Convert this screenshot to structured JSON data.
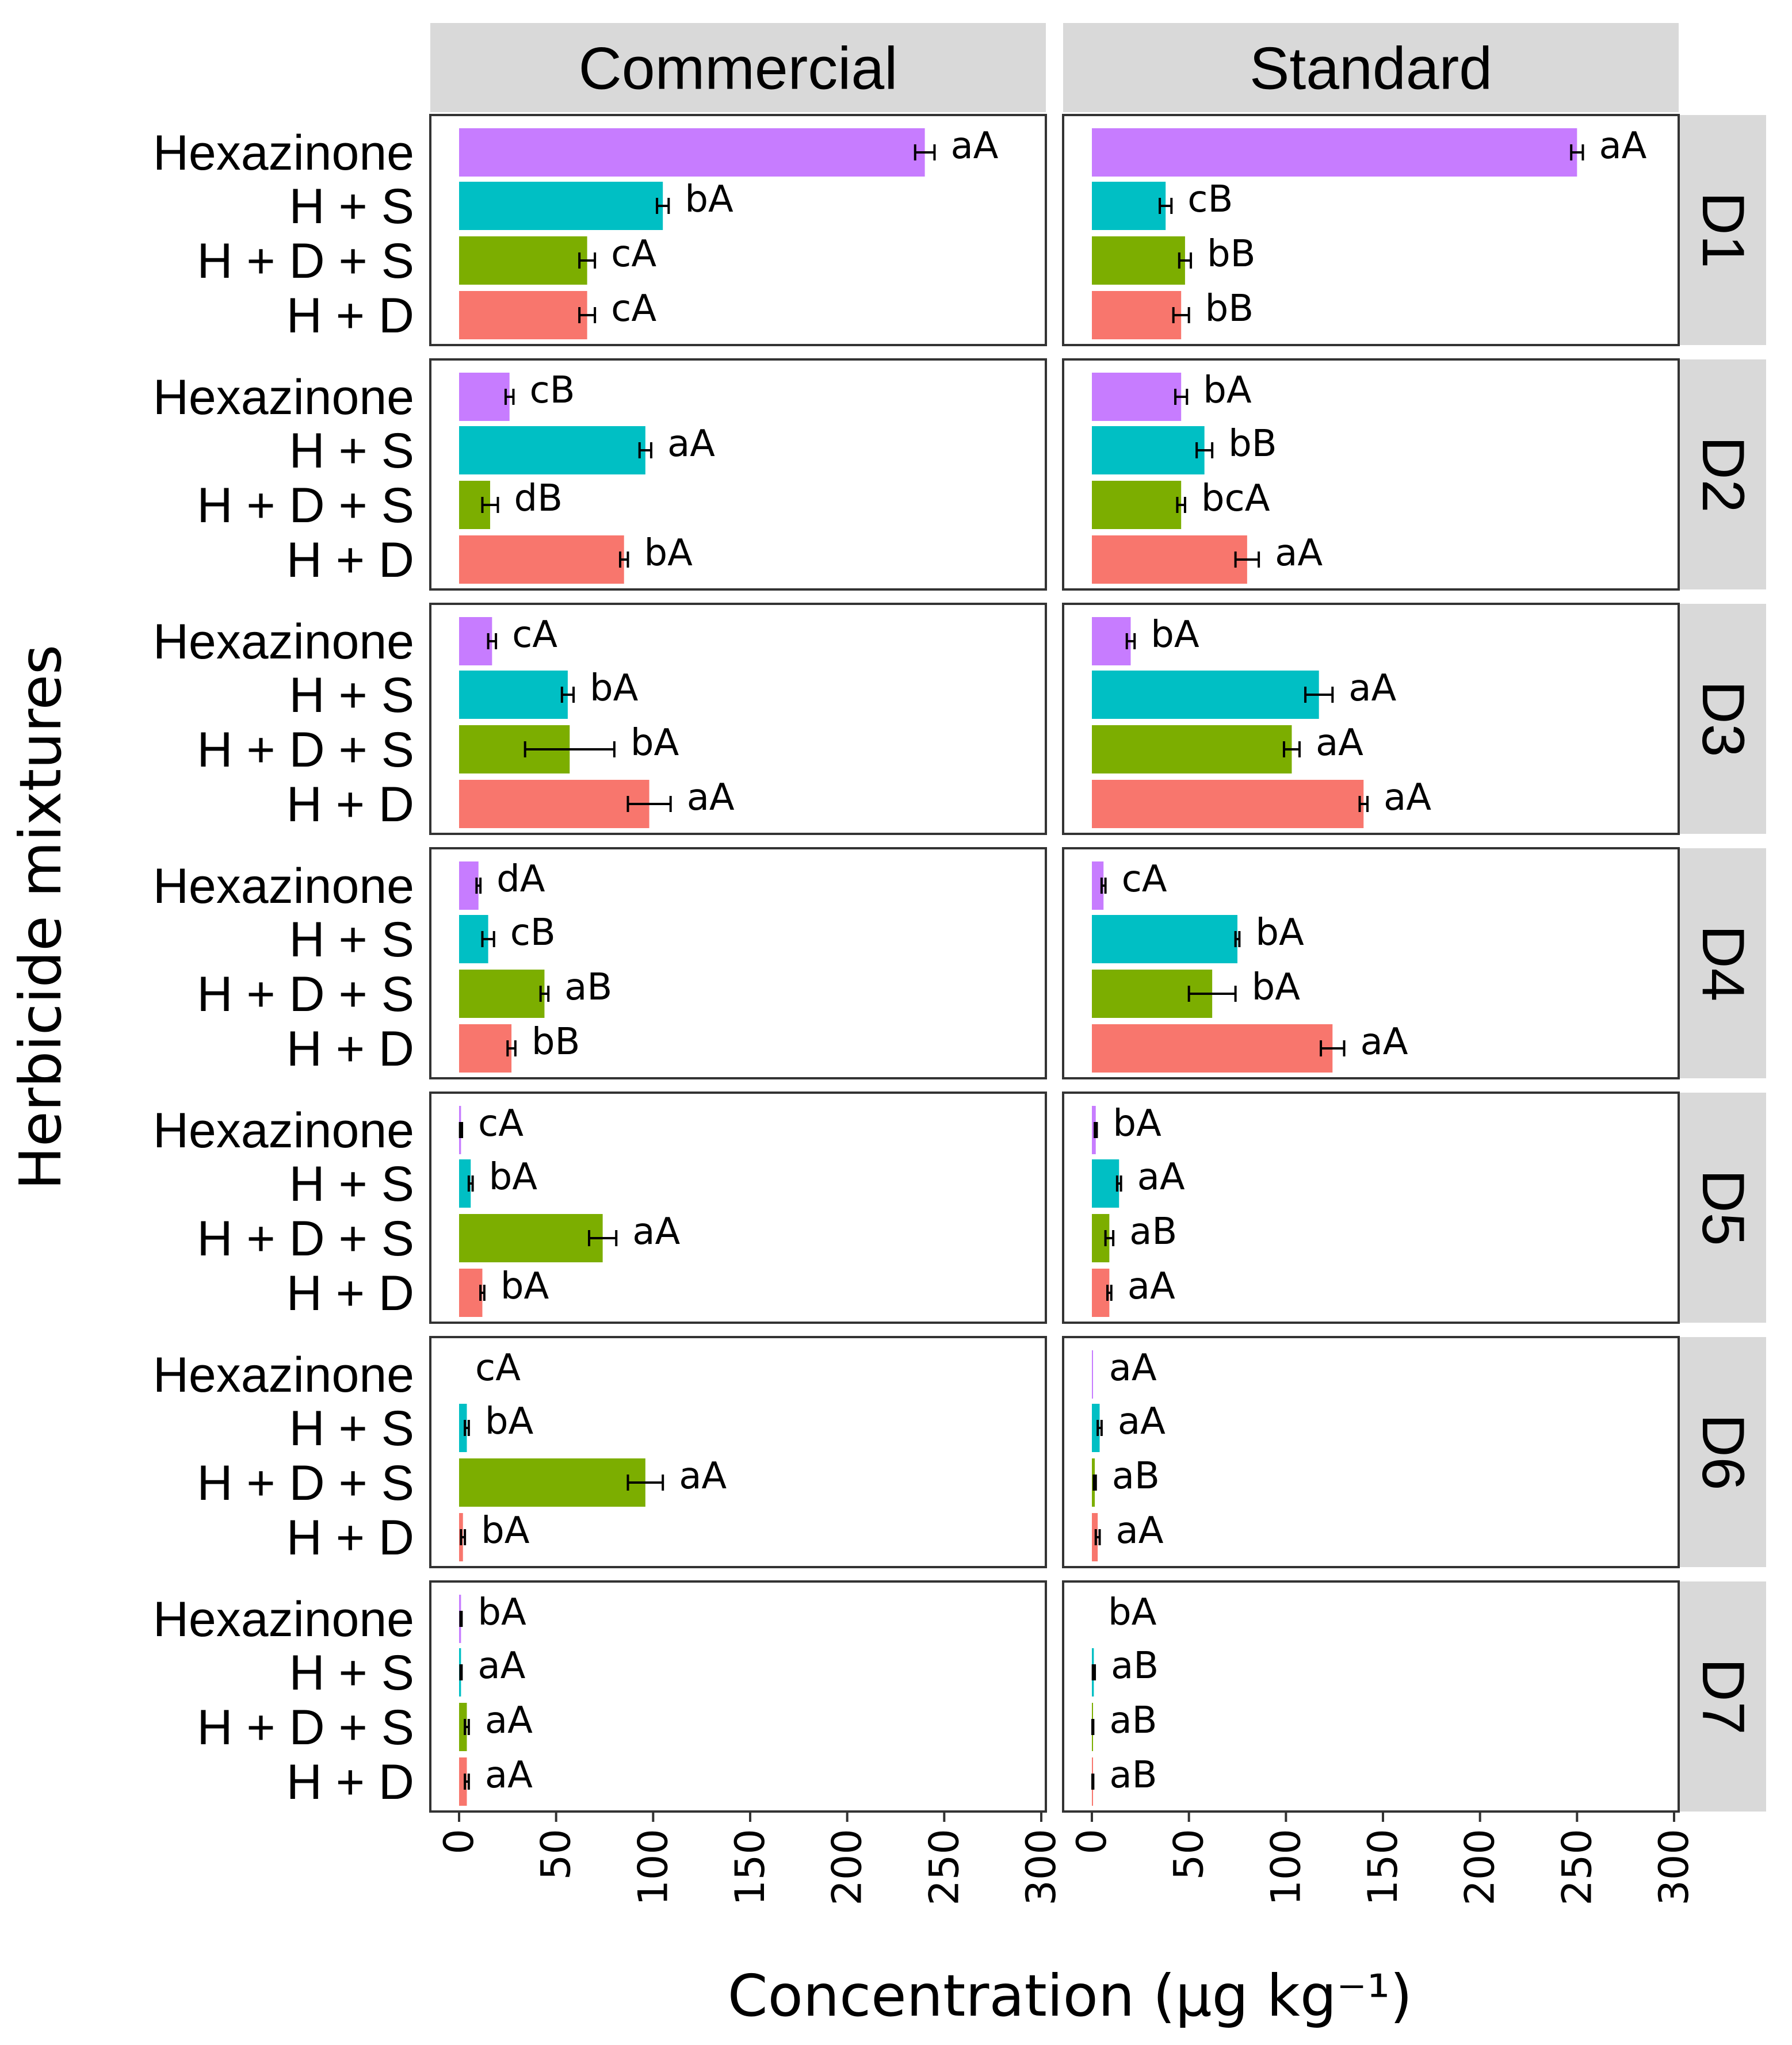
{
  "chart_data": {
    "type": "bar",
    "orientation": "horizontal",
    "xlabel": "Concentration (µg kg⁻¹)",
    "ylabel": "Herbicide mixtures",
    "xlim": [
      0,
      300
    ],
    "xticks": [
      "0",
      "50",
      "100",
      "150",
      "200",
      "250",
      "300"
    ],
    "columns": [
      "Commercial",
      "Standard"
    ],
    "rows": [
      "D1",
      "D2",
      "D3",
      "D4",
      "D5",
      "D6",
      "D7"
    ],
    "categories": [
      "Hexazinone",
      "H + S",
      "H + D + S",
      "H + D"
    ],
    "colors": {
      "Hexazinone": "#c77cff",
      "H + S": "#00bfc4",
      "H + D + S": "#7cae00",
      "H + D": "#f8766d"
    },
    "panels": [
      {
        "row": "D1",
        "column": "Commercial",
        "values": [
          240,
          105,
          66,
          66
        ],
        "errors": [
          5,
          3,
          4,
          4
        ],
        "letters": [
          "aA",
          "bA",
          "cA",
          "cA"
        ]
      },
      {
        "row": "D1",
        "column": "Standard",
        "values": [
          250,
          38,
          48,
          46
        ],
        "errors": [
          3,
          3,
          3,
          4
        ],
        "letters": [
          "aA",
          "cB",
          "bB",
          "bB"
        ]
      },
      {
        "row": "D2",
        "column": "Commercial",
        "values": [
          26,
          96,
          16,
          85
        ],
        "errors": [
          2,
          3,
          4,
          2
        ],
        "letters": [
          "cB",
          "aA",
          "dB",
          "bA"
        ]
      },
      {
        "row": "D2",
        "column": "Standard",
        "values": [
          46,
          58,
          46,
          80
        ],
        "errors": [
          3,
          4,
          2,
          6
        ],
        "letters": [
          "bA",
          "bB",
          "bcA",
          "aA"
        ]
      },
      {
        "row": "D3",
        "column": "Commercial",
        "values": [
          17,
          56,
          57,
          98
        ],
        "errors": [
          2,
          3,
          23,
          11
        ],
        "letters": [
          "cA",
          "bA",
          "bA",
          "aA"
        ]
      },
      {
        "row": "D3",
        "column": "Standard",
        "values": [
          20,
          117,
          103,
          140
        ],
        "errors": [
          2,
          7,
          4,
          2
        ],
        "letters": [
          "bA",
          "aA",
          "aA",
          "aA"
        ]
      },
      {
        "row": "D4",
        "column": "Commercial",
        "values": [
          10,
          15,
          44,
          27
        ],
        "errors": [
          1,
          3,
          2,
          2
        ],
        "letters": [
          "dA",
          "cB",
          "aB",
          "bB"
        ]
      },
      {
        "row": "D4",
        "column": "Standard",
        "values": [
          6,
          75,
          62,
          124
        ],
        "errors": [
          1,
          1,
          12,
          6
        ],
        "letters": [
          "cA",
          "bA",
          "bA",
          "aA"
        ]
      },
      {
        "row": "D5",
        "column": "Commercial",
        "values": [
          1,
          6,
          74,
          12
        ],
        "errors": [
          0.5,
          1,
          7,
          1
        ],
        "letters": [
          "cA",
          "bA",
          "aA",
          "bA"
        ]
      },
      {
        "row": "D5",
        "column": "Standard",
        "values": [
          2,
          14,
          9,
          9
        ],
        "errors": [
          0.5,
          1,
          2,
          1
        ],
        "letters": [
          "bA",
          "aA",
          "aB",
          "aA"
        ]
      },
      {
        "row": "D6",
        "column": "Commercial",
        "values": [
          0,
          4,
          96,
          2
        ],
        "errors": [
          0,
          1,
          9,
          1
        ],
        "letters": [
          "cA",
          "bA",
          "aA",
          "bA"
        ]
      },
      {
        "row": "D6",
        "column": "Standard",
        "values": [
          0.5,
          4,
          1.5,
          3
        ],
        "errors": [
          0,
          1,
          0.5,
          1
        ],
        "letters": [
          "aA",
          "aA",
          "aB",
          "aA"
        ]
      },
      {
        "row": "D7",
        "column": "Commercial",
        "values": [
          1,
          1,
          4,
          4
        ],
        "errors": [
          0.3,
          0.3,
          1,
          1
        ],
        "letters": [
          "bA",
          "aA",
          "aA",
          "aA"
        ]
      },
      {
        "row": "D7",
        "column": "Standard",
        "values": [
          0,
          1,
          0.5,
          0.5
        ],
        "errors": [
          0,
          0.5,
          0.2,
          0.2
        ],
        "letters": [
          "bA",
          "aB",
          "aB",
          "aB"
        ]
      }
    ]
  }
}
